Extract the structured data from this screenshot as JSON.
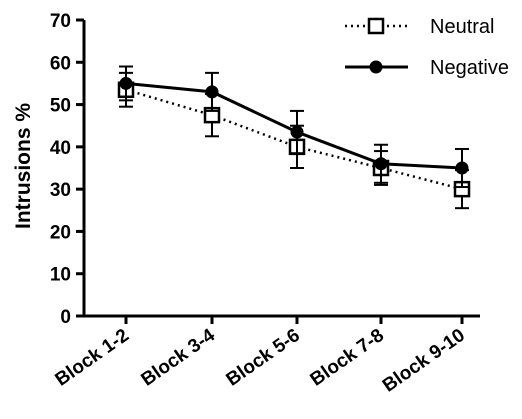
{
  "chart_data": {
    "type": "line",
    "ylabel": "Intrusions %",
    "xlabel": "",
    "categories": [
      "Block 1-2",
      "Block 3-4",
      "Block 5-6",
      "Block 7-8",
      "Block 9-10"
    ],
    "ylim": [
      0,
      70
    ],
    "yticks": [
      0,
      10,
      20,
      30,
      40,
      50,
      60,
      70
    ],
    "grid": false,
    "legend_position": "top-right",
    "series": [
      {
        "name": "Neutral",
        "style": "dotted",
        "marker": "open-square",
        "color": "#000000",
        "values": [
          53.5,
          47.5,
          40,
          35,
          30
        ],
        "error": [
          4,
          5,
          5,
          4,
          4.5
        ]
      },
      {
        "name": "Negative",
        "style": "solid",
        "marker": "filled-circle",
        "color": "#000000",
        "values": [
          55,
          53,
          43.5,
          36,
          35
        ],
        "error": [
          4,
          4.5,
          5,
          4.5,
          4.5
        ]
      }
    ]
  }
}
